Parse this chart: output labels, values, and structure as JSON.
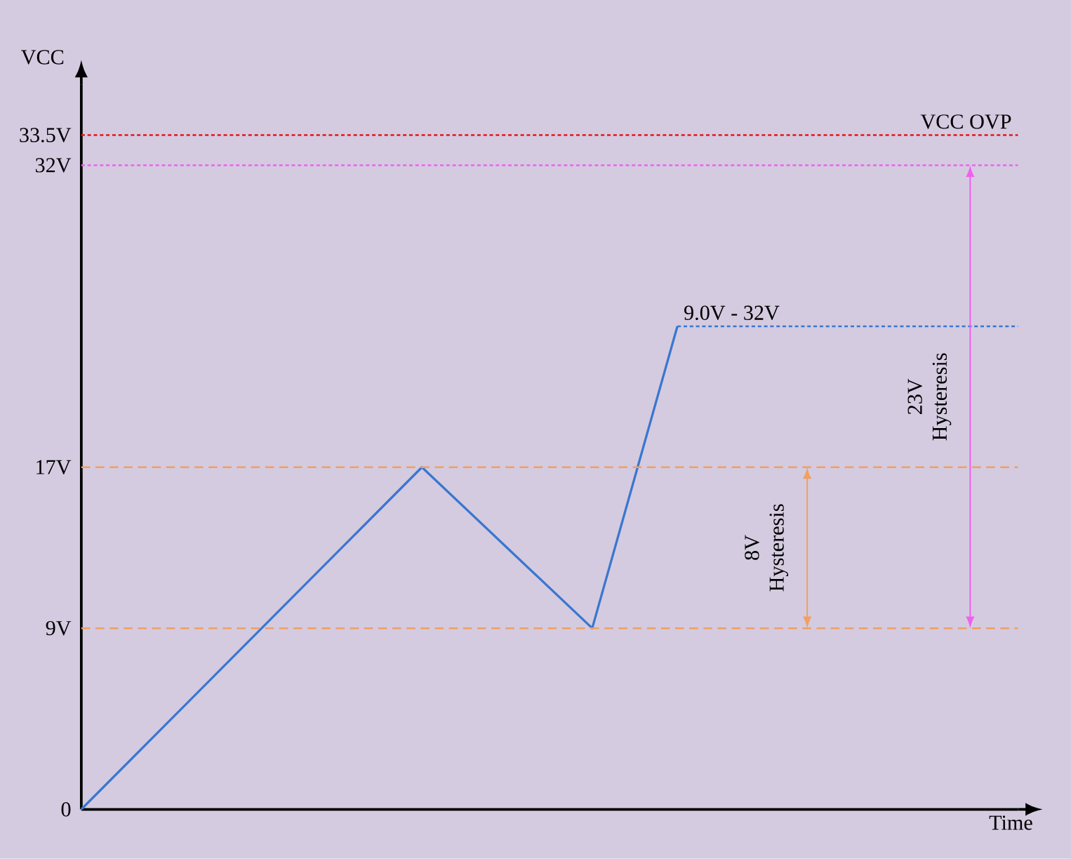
{
  "chart_data": {
    "type": "line",
    "xlabel": "Time",
    "ylabel": "VCC",
    "ylim": [
      0,
      36
    ],
    "categories": [
      null,
      null,
      null,
      null,
      null,
      null,
      null,
      null,
      null,
      null,
      null,
      null
    ],
    "yticks": [
      {
        "value": 0,
        "label": "0"
      },
      {
        "value": 9,
        "label": "9V"
      },
      {
        "value": 17,
        "label": "17V"
      },
      {
        "value": 32,
        "label": "32V"
      },
      {
        "value": 33.5,
        "label": "33.5V"
      }
    ],
    "tick_labels": "y",
    "grid": false,
    "marker": "none",
    "line_style": "solid",
    "series": [
      {
        "color": "#3a76d0",
        "values": [
          0,
          4.25,
          8.5,
          12.75,
          17,
          13,
          9,
          24,
          null,
          null,
          null,
          null
        ]
      }
    ],
    "ref_lines": [
      {
        "axis": "y",
        "value": 33.5,
        "label": "VCC OVP",
        "color": "#e8141c",
        "line_style": "dotted"
      },
      {
        "axis": "y",
        "value": 32,
        "label": null,
        "color": "#f060f0",
        "line_style": "dotted"
      },
      {
        "axis": "y",
        "value": 24,
        "label": "9.0V - 32V",
        "color": "#3a76d0",
        "line_style": "dotted"
      },
      {
        "axis": "y",
        "value": 17,
        "label": null,
        "color": "#f0a060",
        "line_style": "dashed"
      },
      {
        "axis": "y",
        "value": 9,
        "label": null,
        "color": "#f0a060",
        "line_style": "dashed"
      }
    ],
    "annotations": [
      "8V Hysteresis",
      "23V Hysteresis"
    ]
  }
}
